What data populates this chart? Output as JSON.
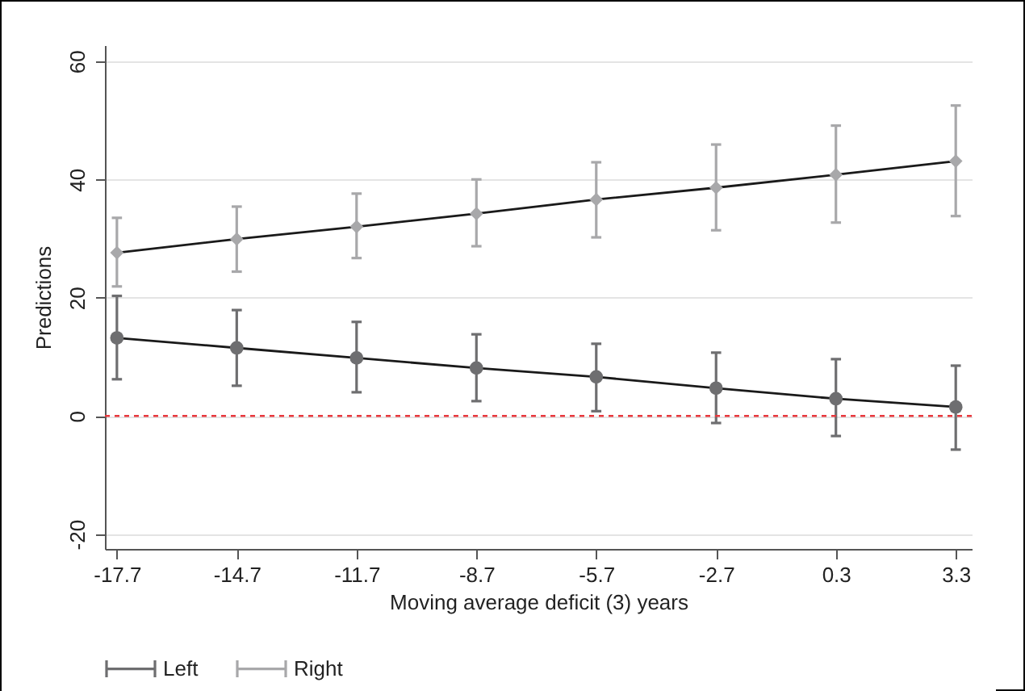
{
  "chart_data": {
    "type": "line",
    "xlabel": "Moving average deficit (3) years",
    "ylabel": "Predictions",
    "x": [
      -17.7,
      -14.7,
      -11.7,
      -8.7,
      -5.7,
      -2.7,
      0.3,
      3.3
    ],
    "series": [
      {
        "name": "Left",
        "color": "#6e6e70",
        "marker": "circle",
        "values": [
          13.2,
          11.5,
          9.8,
          8.1,
          6.6,
          4.7,
          2.9,
          1.5
        ],
        "errors": [
          [
            6.2,
            20.3
          ],
          [
            5.1,
            17.9
          ],
          [
            4.0,
            15.9
          ],
          [
            2.5,
            13.8
          ],
          [
            0.8,
            12.2
          ],
          [
            -1.2,
            10.7
          ],
          [
            -3.4,
            9.6
          ],
          [
            -5.7,
            8.5
          ]
        ]
      },
      {
        "name": "Right",
        "color": "#a8a8aa",
        "marker": "diamond",
        "values": [
          27.6,
          29.9,
          32.0,
          34.2,
          36.6,
          38.6,
          40.8,
          43.1
        ],
        "errors": [
          [
            21.9,
            33.5
          ],
          [
            24.4,
            35.4
          ],
          [
            26.7,
            37.6
          ],
          [
            28.7,
            40.0
          ],
          [
            30.2,
            42.9
          ],
          [
            31.4,
            45.9
          ],
          [
            32.7,
            49.1
          ],
          [
            33.8,
            52.5
          ]
        ]
      }
    ],
    "xlim": [
      -18,
      3.7
    ],
    "xticks": [
      -17.7,
      -14.7,
      -11.7,
      -8.7,
      -5.7,
      -2.7,
      0.3,
      3.3
    ],
    "ylim": [
      -22.5,
      62.7
    ],
    "yticks": [
      -20,
      0,
      20,
      40,
      60
    ],
    "ref_lines": [
      {
        "axis": "y",
        "value": 0,
        "color": "#e8383d",
        "line_style": "dashed"
      }
    ],
    "grid": "y",
    "legend": "bottom",
    "line_style": "solid"
  }
}
